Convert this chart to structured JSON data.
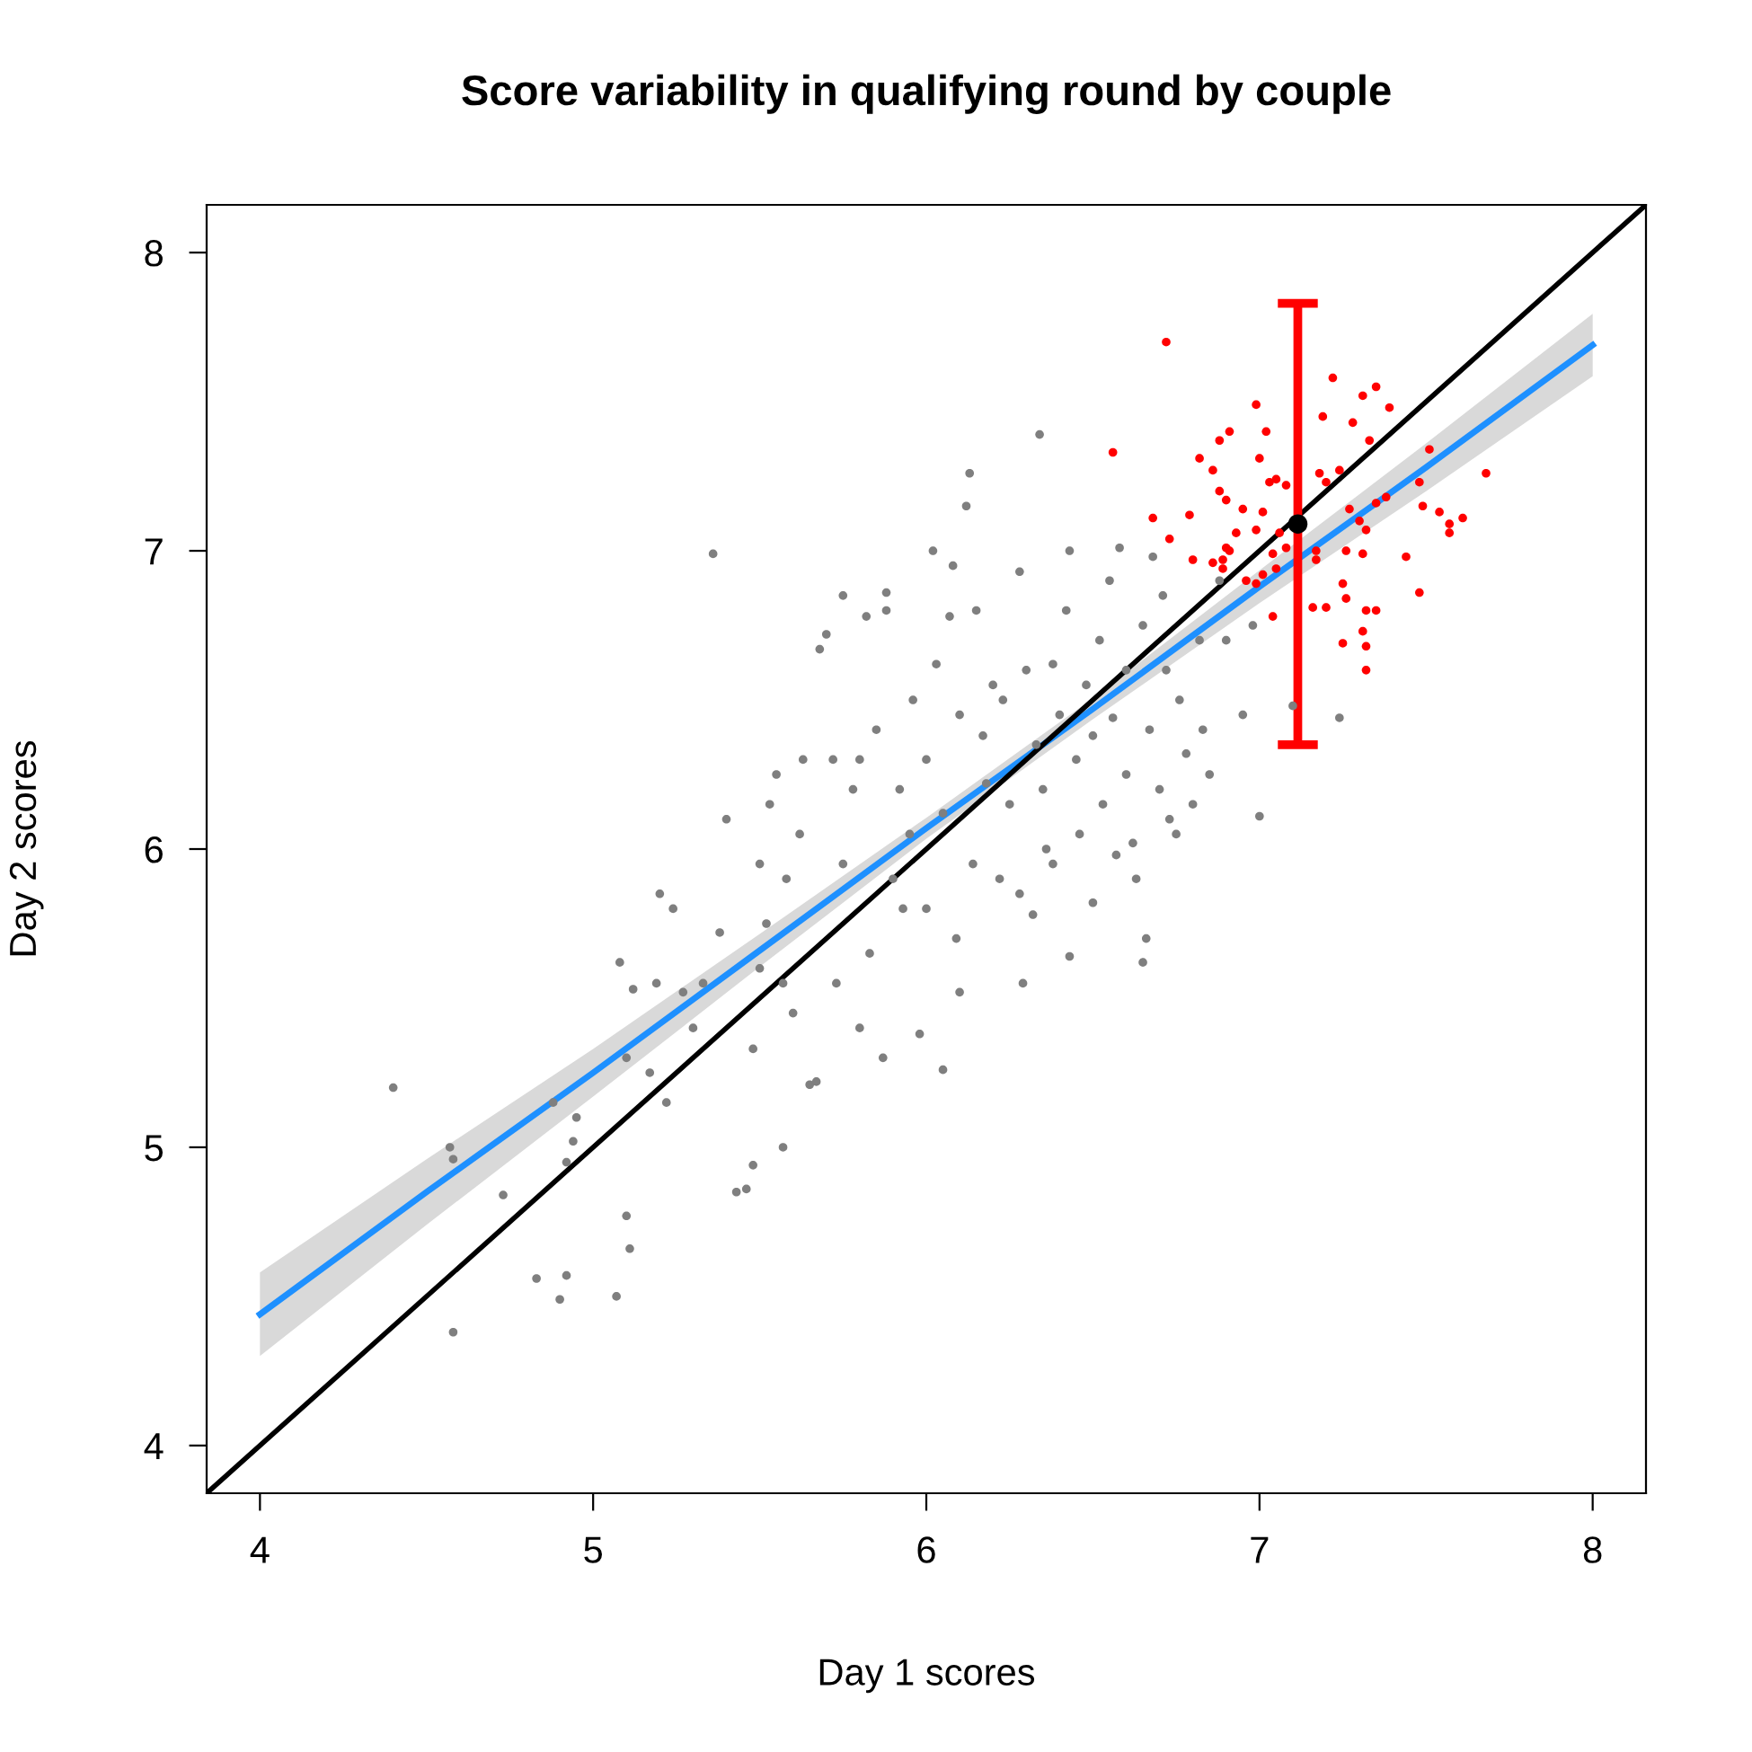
{
  "chart_data": {
    "type": "scatter",
    "title": "Score variability in qualifying round by couple",
    "xlabel": "Day 1 scores",
    "ylabel": "Day 2 scores",
    "xlim": [
      3.84,
      8.16
    ],
    "ylim": [
      3.84,
      8.16
    ],
    "xticks": [
      4,
      5,
      6,
      7,
      8
    ],
    "yticks": [
      4,
      5,
      6,
      7,
      8
    ],
    "grid": false,
    "legend": false,
    "marker": "circle",
    "series": [
      {
        "color": "#7f7f7f",
        "x": [
          4.4,
          4.58,
          4.57,
          4.58,
          4.73,
          4.83,
          4.9,
          4.92,
          4.88,
          4.92,
          4.95,
          4.94,
          5.07,
          5.1,
          5.11,
          5.1,
          5.08,
          5.12,
          5.17,
          5.19,
          5.2,
          5.22,
          5.24,
          5.27,
          5.3,
          5.33,
          5.36,
          5.38,
          5.4,
          5.43,
          5.46,
          5.48,
          5.48,
          5.5,
          5.52,
          5.5,
          5.53,
          5.55,
          5.57,
          5.57,
          5.58,
          5.6,
          5.62,
          5.63,
          5.65,
          5.67,
          5.68,
          5.7,
          5.72,
          5.73,
          5.75,
          5.75,
          5.78,
          5.8,
          5.8,
          5.82,
          5.83,
          5.85,
          5.87,
          5.88,
          5.88,
          5.9,
          5.92,
          5.93,
          5.95,
          5.96,
          5.98,
          6.0,
          6.0,
          6.02,
          6.03,
          6.05,
          6.05,
          6.07,
          6.08,
          6.09,
          6.1,
          6.1,
          6.12,
          6.13,
          6.14,
          6.15,
          6.17,
          6.18,
          6.2,
          6.22,
          6.23,
          6.25,
          6.28,
          6.28,
          6.29,
          6.3,
          6.32,
          6.33,
          6.34,
          6.35,
          6.36,
          6.38,
          6.38,
          6.4,
          6.42,
          6.43,
          6.43,
          6.45,
          6.46,
          6.48,
          6.5,
          6.5,
          6.52,
          6.53,
          6.55,
          6.56,
          6.57,
          6.58,
          6.6,
          6.6,
          6.62,
          6.63,
          6.65,
          6.65,
          6.66,
          6.67,
          6.68,
          6.7,
          6.71,
          6.72,
          6.73,
          6.75,
          6.76,
          6.78,
          6.8,
          6.82,
          6.83,
          6.85,
          6.88,
          6.9,
          6.95,
          6.98,
          7.0,
          7.1,
          7.24
        ],
        "values": [
          5.2,
          4.38,
          5.0,
          4.96,
          4.84,
          4.56,
          4.49,
          4.57,
          5.15,
          4.95,
          5.1,
          5.02,
          4.5,
          4.77,
          4.66,
          5.3,
          5.62,
          5.53,
          5.25,
          5.55,
          5.85,
          5.15,
          5.8,
          5.52,
          5.4,
          5.55,
          6.99,
          5.72,
          6.1,
          4.85,
          4.86,
          4.94,
          5.33,
          5.6,
          5.75,
          5.95,
          6.15,
          6.25,
          5.0,
          5.55,
          5.9,
          5.45,
          6.05,
          6.3,
          5.21,
          5.22,
          6.67,
          6.72,
          6.3,
          5.55,
          6.85,
          5.95,
          6.2,
          6.3,
          5.4,
          6.78,
          5.65,
          6.4,
          5.3,
          6.8,
          6.86,
          5.9,
          6.2,
          5.8,
          6.05,
          6.5,
          5.38,
          6.3,
          5.8,
          7.0,
          6.62,
          6.12,
          5.26,
          6.78,
          6.95,
          5.7,
          6.45,
          5.52,
          7.15,
          7.26,
          5.95,
          6.8,
          6.38,
          6.22,
          6.55,
          5.9,
          6.5,
          6.15,
          5.85,
          6.93,
          5.55,
          6.6,
          5.78,
          6.35,
          7.39,
          6.2,
          6.0,
          6.62,
          5.95,
          6.45,
          6.8,
          5.64,
          7.0,
          6.3,
          6.05,
          6.55,
          6.38,
          5.82,
          6.7,
          6.15,
          6.9,
          6.44,
          5.98,
          7.01,
          6.6,
          6.25,
          6.02,
          5.9,
          6.75,
          5.62,
          5.7,
          6.4,
          6.98,
          6.2,
          6.85,
          6.6,
          6.1,
          6.05,
          6.5,
          6.32,
          6.15,
          6.7,
          6.4,
          6.25,
          6.9,
          6.7,
          6.45,
          6.75,
          6.11,
          6.48,
          6.44
        ]
      },
      {
        "color": "#ff0000",
        "x": [
          6.72,
          6.56,
          6.68,
          6.73,
          6.79,
          6.8,
          6.82,
          6.86,
          6.86,
          6.88,
          6.88,
          6.9,
          6.91,
          6.89,
          6.9,
          6.91,
          6.89,
          6.93,
          6.95,
          6.96,
          6.99,
          7.0,
          6.99,
          6.99,
          7.01,
          7.01,
          7.02,
          7.03,
          7.05,
          7.08,
          7.04,
          7.05,
          7.06,
          7.08,
          7.04,
          7.17,
          7.17,
          7.16,
          7.18,
          7.19,
          7.2,
          7.22,
          7.24,
          7.2,
          7.25,
          7.26,
          7.26,
          7.25,
          7.27,
          7.28,
          7.3,
          7.31,
          7.32,
          7.31,
          7.33,
          7.35,
          7.35,
          7.32,
          7.35,
          7.31,
          7.32,
          7.32,
          7.38,
          7.39,
          7.44,
          7.48,
          7.48,
          7.49,
          7.51,
          7.54,
          7.57,
          7.57,
          7.61,
          7.68
        ],
        "values": [
          7.7,
          7.33,
          7.11,
          7.04,
          7.12,
          6.97,
          7.31,
          7.27,
          6.96,
          7.37,
          7.2,
          7.17,
          7.4,
          6.97,
          7.01,
          7.0,
          6.94,
          7.06,
          7.14,
          6.9,
          7.49,
          7.31,
          7.07,
          6.89,
          7.13,
          6.92,
          7.4,
          7.23,
          7.24,
          7.22,
          6.99,
          6.94,
          7.06,
          7.01,
          6.78,
          7.0,
          6.97,
          6.81,
          7.26,
          7.45,
          7.23,
          7.58,
          7.27,
          6.81,
          6.89,
          6.84,
          7.0,
          6.69,
          7.14,
          7.43,
          7.1,
          7.52,
          7.07,
          6.99,
          7.37,
          7.55,
          7.16,
          6.8,
          6.8,
          6.73,
          6.68,
          6.6,
          7.18,
          7.48,
          6.98,
          6.86,
          7.23,
          7.15,
          7.34,
          7.13,
          7.09,
          7.06,
          7.11,
          7.26
        ]
      },
      {
        "type": "line",
        "marker": "none",
        "color": "#1e90ff",
        "x": [
          4,
          4.5,
          5,
          5.5,
          6,
          6.5,
          7,
          7.5,
          8
        ],
        "values": [
          4.44,
          4.85,
          5.25,
          5.66,
          6.07,
          6.47,
          6.88,
          7.28,
          7.69
        ],
        "lower": [
          4.3,
          4.74,
          5.17,
          5.605,
          6.035,
          6.435,
          6.825,
          7.2,
          7.585
        ],
        "upper": [
          4.58,
          4.96,
          5.33,
          5.715,
          6.105,
          6.505,
          6.935,
          7.36,
          7.795
        ]
      },
      {
        "type": "line",
        "marker": "none",
        "color": "#000000",
        "x": [
          3.84,
          8.16
        ],
        "values": [
          3.84,
          8.16
        ]
      },
      {
        "color": "#ff0000",
        "colors": [
          "#000000"
        ],
        "x": [
          7.115
        ],
        "values": [
          7.09
        ],
        "errors": [
          [
            6.35,
            7.83
          ]
        ]
      }
    ]
  }
}
